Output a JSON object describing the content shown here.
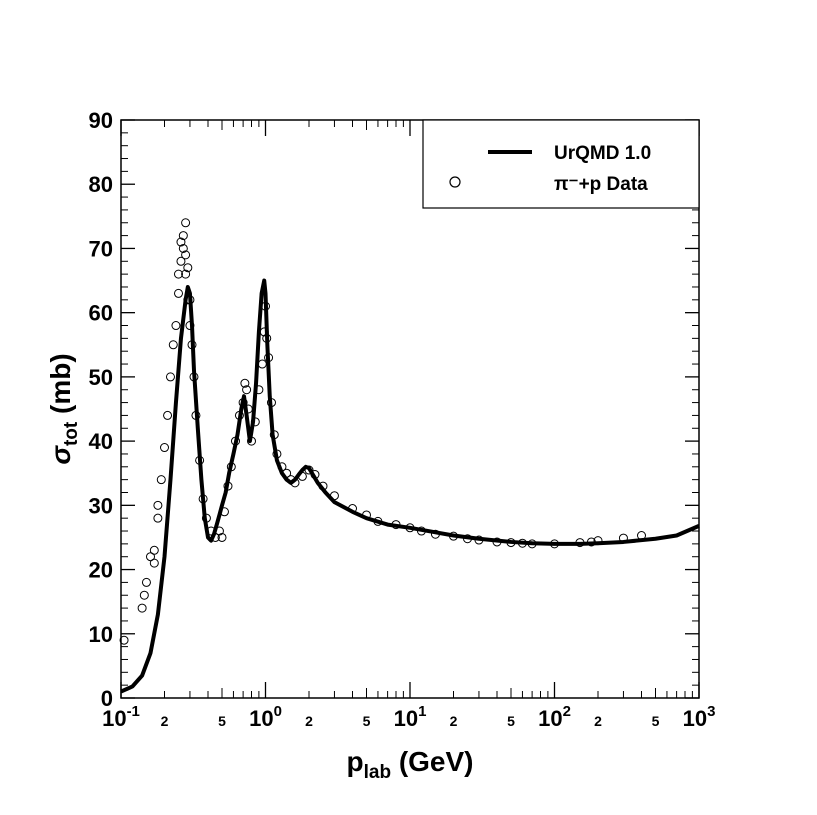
{
  "chart_data": {
    "type": "line",
    "xscale": "log",
    "xlim": [
      0.1,
      1000
    ],
    "ylim": [
      0,
      90
    ],
    "xlabel": {
      "main": "p",
      "sub": "lab",
      "unit": " (GeV)"
    },
    "ylabel": {
      "main": "σ",
      "sub": "tot",
      "unit": " (mb)"
    },
    "yticks": [
      "0",
      "10",
      "20",
      "30",
      "40",
      "50",
      "60",
      "70",
      "80",
      "90"
    ],
    "xticks_major": [
      {
        "base": "10",
        "exp": "-1"
      },
      {
        "base": "10",
        "exp": "0"
      },
      {
        "base": "10",
        "exp": "1"
      },
      {
        "base": "10",
        "exp": "2"
      },
      {
        "base": "10",
        "exp": "3"
      }
    ],
    "xticks_minor_labels": [
      "2",
      "5"
    ],
    "legend": {
      "position": "top-right",
      "entries": [
        {
          "label": "UrQMD 1.0",
          "marker": "line"
        },
        {
          "label": "π⁻+p Data",
          "marker": "open-circle"
        }
      ]
    },
    "series": [
      {
        "name": "UrQMD 1.0",
        "style": "line",
        "x": [
          0.1,
          0.12,
          0.14,
          0.16,
          0.18,
          0.2,
          0.22,
          0.24,
          0.26,
          0.28,
          0.29,
          0.3,
          0.31,
          0.32,
          0.34,
          0.36,
          0.38,
          0.4,
          0.42,
          0.44,
          0.46,
          0.48,
          0.5,
          0.53,
          0.56,
          0.6,
          0.64,
          0.68,
          0.71,
          0.74,
          0.78,
          0.82,
          0.86,
          0.9,
          0.94,
          0.98,
          1.0,
          1.03,
          1.07,
          1.12,
          1.2,
          1.3,
          1.4,
          1.5,
          1.6,
          1.7,
          1.8,
          1.9,
          2.0,
          2.1,
          2.3,
          2.6,
          3,
          4,
          5,
          7,
          10,
          15,
          20,
          30,
          50,
          70,
          100,
          150,
          200,
          300,
          500,
          700,
          1000
        ],
        "y": [
          1,
          1.8,
          3.5,
          7,
          13,
          22,
          34,
          46,
          56,
          62,
          64,
          63,
          58,
          51,
          42,
          34,
          28,
          25,
          24.5,
          25.5,
          27,
          28.5,
          30,
          32,
          35,
          38,
          41,
          45,
          47,
          44,
          40,
          43,
          49,
          57,
          63,
          65,
          63,
          55,
          47,
          41,
          37,
          35,
          34,
          33.5,
          34,
          34.8,
          35.5,
          36,
          35.8,
          35,
          33.5,
          32,
          30.5,
          29,
          28,
          27,
          26.5,
          25.8,
          25.3,
          24.8,
          24.3,
          24.1,
          24,
          24,
          24.1,
          24.3,
          24.8,
          25.3,
          26.8
        ]
      },
      {
        "name": "π⁻+p Data",
        "style": "open-circle",
        "x": [
          0.105,
          0.14,
          0.145,
          0.15,
          0.16,
          0.17,
          0.17,
          0.18,
          0.18,
          0.19,
          0.2,
          0.21,
          0.22,
          0.23,
          0.24,
          0.25,
          0.25,
          0.26,
          0.26,
          0.27,
          0.27,
          0.28,
          0.28,
          0.28,
          0.29,
          0.29,
          0.3,
          0.3,
          0.31,
          0.32,
          0.33,
          0.35,
          0.37,
          0.39,
          0.42,
          0.45,
          0.48,
          0.5,
          0.52,
          0.55,
          0.58,
          0.62,
          0.66,
          0.7,
          0.72,
          0.74,
          0.76,
          0.8,
          0.85,
          0.9,
          0.95,
          0.98,
          1.0,
          1.02,
          1.05,
          1.1,
          1.15,
          1.2,
          1.3,
          1.4,
          1.5,
          1.6,
          1.8,
          2.0,
          2.2,
          2.5,
          3,
          4,
          5,
          6,
          8,
          10,
          12,
          15,
          20,
          25,
          30,
          40,
          50,
          60,
          70,
          100,
          150,
          180,
          200,
          300,
          400
        ],
        "y": [
          9,
          14,
          16,
          18,
          22,
          21,
          23,
          28,
          30,
          34,
          39,
          44,
          50,
          55,
          58,
          63,
          66,
          68,
          71,
          70,
          72,
          66,
          69,
          74,
          62,
          67,
          62,
          58,
          55,
          50,
          44,
          37,
          31,
          28,
          26,
          25,
          26,
          25,
          29,
          33,
          36,
          40,
          44,
          46,
          49,
          48,
          45,
          40,
          43,
          48,
          52,
          57,
          61,
          56,
          53,
          46,
          41,
          38,
          36,
          35,
          34,
          33.5,
          34.5,
          35.5,
          34.8,
          33,
          31.5,
          29.5,
          28.5,
          27.5,
          27,
          26.5,
          26,
          25.5,
          25.2,
          24.8,
          24.6,
          24.3,
          24.2,
          24.1,
          24,
          24,
          24.2,
          24.3,
          24.5,
          24.9,
          25.3
        ]
      }
    ]
  }
}
